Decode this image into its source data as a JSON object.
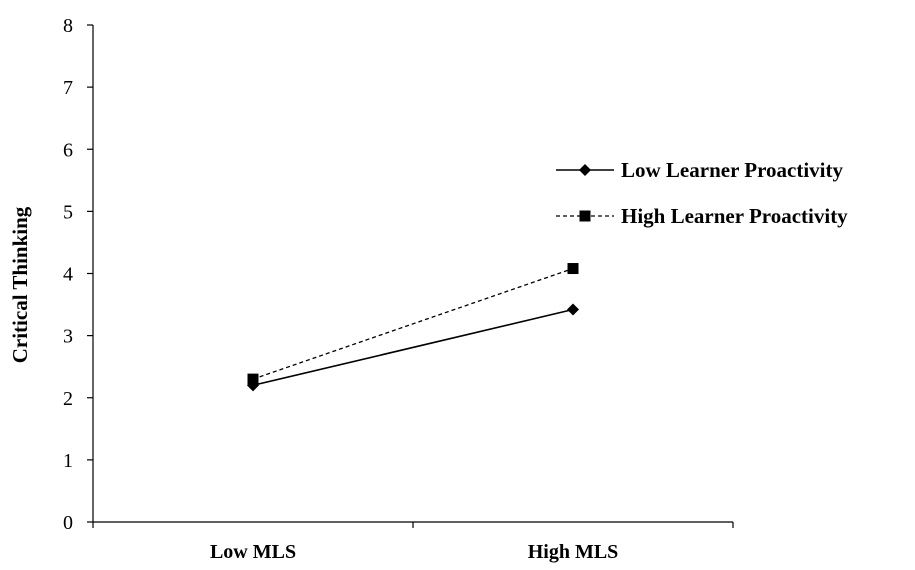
{
  "chart_data": {
    "type": "line",
    "title": "",
    "xlabel": "",
    "ylabel": "Critical Thinking",
    "categories": [
      "Low MLS",
      "High MLS"
    ],
    "ylim": [
      0,
      8
    ],
    "yticks": [
      "0",
      "1",
      "2",
      "3",
      "4",
      "5",
      "6",
      "7",
      "8"
    ],
    "grid": false,
    "legend_position": "right",
    "series": [
      {
        "name": "Low Learner Proactivity",
        "values": [
          2.2,
          3.42
        ],
        "marker": "diamond",
        "line_style": "solid",
        "color": "#000000"
      },
      {
        "name": "High Learner Proactivity",
        "values": [
          2.3,
          4.08
        ],
        "marker": "square",
        "line_style": "dashed",
        "color": "#000000"
      }
    ]
  }
}
